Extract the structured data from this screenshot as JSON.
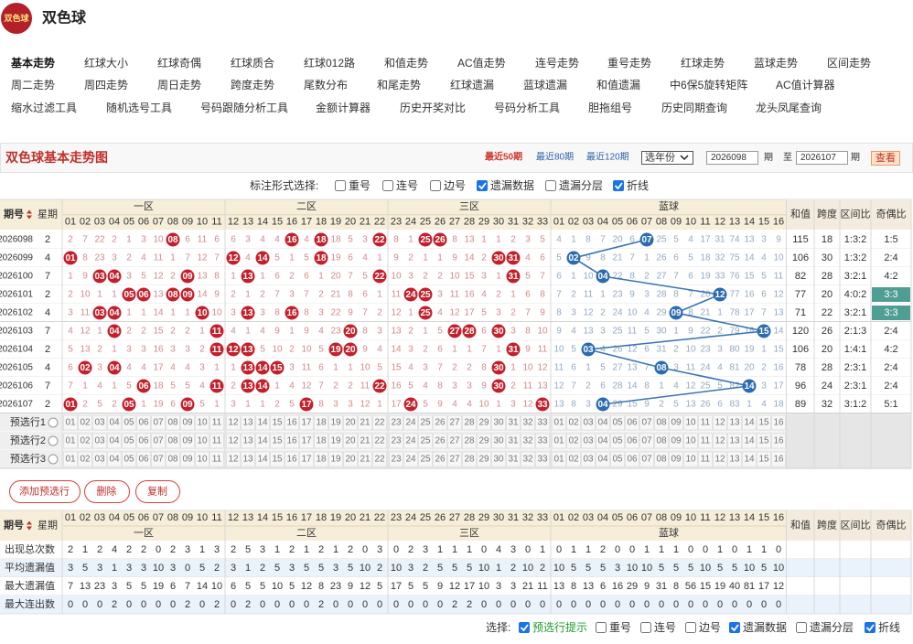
{
  "logo_text": "双色球",
  "title": "双色球",
  "nav": [
    [
      "基本走势",
      "红球大小",
      "红球奇偶",
      "红球质合",
      "红球012路",
      "和值走势",
      "AC值走势",
      "连号走势",
      "重号走势",
      "红球走势",
      "蓝球走势",
      "区间走势"
    ],
    [
      "周二走势",
      "周四走势",
      "周日走势",
      "跨度走势",
      "尾数分布",
      "和尾走势",
      "红球遗漏",
      "蓝球遗漏",
      "和值遗漏",
      "中6保5旋转矩阵",
      "AC值计算器"
    ],
    [
      "缩水过滤工具",
      "随机选号工具",
      "号码跟随分析工具",
      "金额计算器",
      "历史开奖对比",
      "号码分析工具",
      "胆拖组号",
      "历史同期查询",
      "龙头凤尾查询"
    ]
  ],
  "section": {
    "title": "双色球基本走势图",
    "ranges": [
      "最近50期",
      "最近80期",
      "最近120期"
    ],
    "year_select": "选年份",
    "from": "2026098",
    "from_unit": "期",
    "to_label": "至",
    "to": "2026107",
    "to_unit": "期",
    "button": "查看"
  },
  "mark_options": {
    "label": "标注形式选择:",
    "items": [
      {
        "text": "重号",
        "checked": false
      },
      {
        "text": "连号",
        "checked": false
      },
      {
        "text": "边号",
        "checked": false
      },
      {
        "text": "遗漏数据",
        "checked": true
      },
      {
        "text": "遗漏分层",
        "checked": false
      },
      {
        "text": "折线",
        "checked": true
      }
    ]
  },
  "table": {
    "headers": {
      "period": "期号",
      "weekday": "星期",
      "zones": [
        "一区",
        "二区",
        "三区",
        "蓝球"
      ],
      "red_numbers": [
        "01",
        "02",
        "03",
        "04",
        "05",
        "06",
        "07",
        "08",
        "09",
        "10",
        "11",
        "12",
        "13",
        "14",
        "15",
        "16",
        "17",
        "18",
        "19",
        "20",
        "21",
        "22",
        "23",
        "24",
        "25",
        "26",
        "27",
        "28",
        "29",
        "30",
        "31",
        "32",
        "33"
      ],
      "blue_numbers": [
        "01",
        "02",
        "03",
        "04",
        "05",
        "06",
        "07",
        "08",
        "09",
        "10",
        "11",
        "12",
        "13",
        "14",
        "15",
        "16"
      ],
      "extras": [
        "和值",
        "跨度",
        "区间比",
        "奇偶比"
      ]
    },
    "rows": [
      {
        "period": "2026098",
        "weekday": 2,
        "cells": [
          2,
          7,
          22,
          2,
          1,
          3,
          10,
          "08",
          6,
          11,
          6,
          6,
          3,
          4,
          4,
          "16",
          4,
          "18",
          18,
          5,
          3,
          "22",
          8,
          1,
          "25",
          "26",
          8,
          13,
          1,
          1,
          2,
          3,
          5,
          4,
          1,
          8,
          7,
          20,
          6,
          "07",
          25,
          5,
          4,
          17,
          31,
          74,
          13,
          3,
          9
        ],
        "sum": 115,
        "span": 18,
        "zone_ratio": "1:3:2",
        "odd_even": "1:5"
      },
      {
        "period": "2026099",
        "weekday": 4,
        "cells": [
          "01",
          8,
          23,
          3,
          2,
          4,
          11,
          1,
          7,
          12,
          7,
          "12",
          4,
          "14",
          5,
          1,
          5,
          "18",
          19,
          6,
          4,
          1,
          9,
          2,
          1,
          1,
          9,
          14,
          2,
          "30",
          "31",
          4,
          6,
          5,
          "02",
          9,
          8,
          21,
          7,
          1,
          26,
          6,
          5,
          18,
          32,
          75,
          14,
          4,
          10
        ],
        "sum": 106,
        "span": 30,
        "zone_ratio": "1:3:2",
        "odd_even": "2:4"
      },
      {
        "period": "2026100",
        "weekday": 7,
        "cells": [
          1,
          9,
          "03",
          "04",
          3,
          5,
          12,
          2,
          "09",
          13,
          8,
          1,
          "13",
          1,
          6,
          2,
          6,
          1,
          20,
          7,
          5,
          "22",
          10,
          3,
          2,
          2,
          10,
          15,
          3,
          1,
          "31",
          5,
          7,
          6,
          1,
          10,
          "04",
          22,
          8,
          2,
          27,
          7,
          6,
          19,
          33,
          76,
          15,
          5,
          11
        ],
        "sum": 82,
        "span": 28,
        "zone_ratio": "3:2:1",
        "odd_even": "4:2"
      },
      {
        "period": "2026101",
        "weekday": 2,
        "cells": [
          2,
          10,
          1,
          1,
          "05",
          "06",
          13,
          "08",
          "09",
          14,
          9,
          2,
          1,
          2,
          7,
          3,
          7,
          2,
          21,
          8,
          6,
          1,
          11,
          "24",
          "25",
          3,
          11,
          16,
          4,
          2,
          1,
          6,
          8,
          7,
          2,
          11,
          1,
          23,
          9,
          3,
          28,
          8,
          7,
          20,
          "12",
          77,
          16,
          6,
          12
        ],
        "sum": 77,
        "span": 20,
        "zone_ratio": "4:0:2",
        "odd_even": "3:3",
        "highlight": "#4f9e94"
      },
      {
        "period": "2026102",
        "weekday": 4,
        "cells": [
          3,
          11,
          "03",
          "04",
          1,
          1,
          14,
          1,
          1,
          "10",
          10,
          3,
          "13",
          3,
          8,
          "16",
          8,
          3,
          22,
          9,
          7,
          2,
          12,
          1,
          "25",
          4,
          12,
          17,
          5,
          3,
          2,
          7,
          9,
          8,
          3,
          12,
          2,
          24,
          10,
          4,
          29,
          "09",
          8,
          21,
          1,
          78,
          17,
          7,
          13
        ],
        "sum": 71,
        "span": 22,
        "zone_ratio": "3:2:1",
        "odd_even": "3:3",
        "highlight": "#4f9e94"
      },
      {
        "period": "2026103",
        "weekday": 7,
        "cells": [
          4,
          12,
          1,
          "04",
          2,
          2,
          15,
          2,
          2,
          1,
          "11",
          4,
          1,
          4,
          9,
          1,
          9,
          4,
          23,
          "20",
          8,
          3,
          13,
          2,
          1,
          5,
          "27",
          "28",
          6,
          "30",
          3,
          8,
          10,
          9,
          4,
          13,
          3,
          25,
          11,
          5,
          30,
          1,
          9,
          22,
          2,
          79,
          18,
          "15",
          14
        ],
        "sum": 120,
        "span": 26,
        "zone_ratio": "2:1:3",
        "odd_even": "2:4"
      },
      {
        "period": "2026104",
        "weekday": 2,
        "cells": [
          5,
          13,
          2,
          1,
          3,
          3,
          16,
          3,
          3,
          2,
          "11",
          "12",
          "13",
          5,
          10,
          2,
          10,
          5,
          "19",
          "20",
          9,
          4,
          14,
          3,
          2,
          6,
          1,
          1,
          7,
          1,
          "31",
          9,
          11,
          10,
          5,
          "03",
          4,
          26,
          12,
          6,
          31,
          2,
          10,
          23,
          3,
          80,
          19,
          1,
          15
        ],
        "sum": 106,
        "span": 20,
        "zone_ratio": "1:4:1",
        "odd_even": "4:2"
      },
      {
        "period": "2026105",
        "weekday": 4,
        "cells": [
          6,
          "02",
          3,
          "04",
          4,
          4,
          17,
          4,
          4,
          3,
          1,
          1,
          "13",
          "14",
          "15",
          3,
          11,
          6,
          1,
          1,
          10,
          5,
          15,
          4,
          3,
          7,
          2,
          2,
          8,
          "30",
          1,
          10,
          12,
          11,
          6,
          1,
          5,
          27,
          13,
          7,
          "08",
          3,
          11,
          24,
          4,
          81,
          20,
          2,
          16
        ],
        "sum": 78,
        "span": 28,
        "zone_ratio": "2:3:1",
        "odd_even": "2:4"
      },
      {
        "period": "2026106",
        "weekday": 7,
        "cells": [
          7,
          1,
          4,
          1,
          5,
          "06",
          18,
          5,
          5,
          4,
          "11",
          2,
          "13",
          "14",
          1,
          4,
          12,
          7,
          2,
          2,
          11,
          "22",
          16,
          5,
          4,
          8,
          3,
          3,
          9,
          "30",
          2,
          11,
          13,
          12,
          7,
          2,
          6,
          28,
          14,
          8,
          1,
          4,
          12,
          25,
          5,
          82,
          "14",
          3,
          17
        ],
        "sum": 96,
        "span": 24,
        "zone_ratio": "2:3:1",
        "odd_even": "2:4"
      },
      {
        "period": "2026107",
        "weekday": 2,
        "cells": [
          "01",
          2,
          5,
          2,
          "05",
          1,
          19,
          6,
          "09",
          5,
          1,
          3,
          1,
          1,
          2,
          5,
          "17",
          8,
          3,
          3,
          12,
          1,
          17,
          "24",
          5,
          9,
          4,
          4,
          10,
          1,
          3,
          12,
          "33",
          13,
          8,
          3,
          "04",
          29,
          15,
          9,
          2,
          5,
          13,
          26,
          6,
          83,
          1,
          4,
          18
        ],
        "sum": 89,
        "span": 32,
        "zone_ratio": "3:1:2",
        "odd_even": "5:1"
      }
    ]
  },
  "preselect": [
    "预选行1",
    "预选行2",
    "预选行3"
  ],
  "buttons": [
    "添加预选行",
    "删除",
    "复制"
  ],
  "stats": [
    {
      "label": "出现总次数",
      "values": [
        2,
        1,
        2,
        4,
        2,
        2,
        0,
        2,
        3,
        1,
        3,
        2,
        5,
        3,
        1,
        2,
        1,
        2,
        1,
        2,
        0,
        3,
        0,
        2,
        3,
        1,
        1,
        1,
        0,
        4,
        3,
        0,
        1,
        0,
        1,
        1,
        2,
        0,
        0,
        1,
        1,
        1,
        0,
        0,
        1,
        0,
        1,
        1,
        0
      ]
    },
    {
      "label": "平均遗漏值",
      "values": [
        3,
        5,
        3,
        1,
        3,
        3,
        10,
        3,
        0,
        5,
        2,
        3,
        1,
        2,
        5,
        3,
        5,
        5,
        3,
        5,
        10,
        2,
        10,
        3,
        2,
        5,
        5,
        5,
        10,
        1,
        2,
        10,
        2,
        10,
        5,
        5,
        5,
        3,
        10,
        10,
        5,
        5,
        5,
        10,
        5,
        5,
        10,
        5,
        10
      ]
    },
    {
      "label": "最大遗漏值",
      "values": [
        7,
        13,
        23,
        3,
        5,
        5,
        19,
        6,
        7,
        14,
        10,
        6,
        5,
        5,
        10,
        5,
        12,
        8,
        23,
        9,
        12,
        5,
        17,
        5,
        5,
        9,
        12,
        17,
        10,
        3,
        3,
        21,
        11,
        13,
        8,
        13,
        6,
        16,
        29,
        9,
        31,
        8,
        56,
        15,
        19,
        40,
        81,
        17,
        12
      ]
    },
    {
      "label": "最大连出数",
      "values": [
        0,
        0,
        0,
        2,
        0,
        0,
        0,
        0,
        2,
        0,
        2,
        0,
        2,
        0,
        0,
        0,
        0,
        2,
        0,
        0,
        0,
        0,
        0,
        0,
        0,
        0,
        2,
        2,
        0,
        0,
        0,
        0,
        0,
        0,
        0,
        0,
        0,
        0,
        0,
        0,
        0,
        0,
        0,
        0,
        0,
        0,
        0,
        0,
        0
      ]
    }
  ],
  "footer_options": {
    "label": "选择:",
    "items": [
      {
        "text": "预选行提示",
        "checked": true,
        "color": "#1f9a2e"
      },
      {
        "text": "重号",
        "checked": false
      },
      {
        "text": "连号",
        "checked": false
      },
      {
        "text": "边号",
        "checked": false
      },
      {
        "text": "遗漏数据",
        "checked": true
      },
      {
        "text": "遗漏分层",
        "checked": false
      },
      {
        "text": "折线",
        "checked": true
      }
    ]
  }
}
